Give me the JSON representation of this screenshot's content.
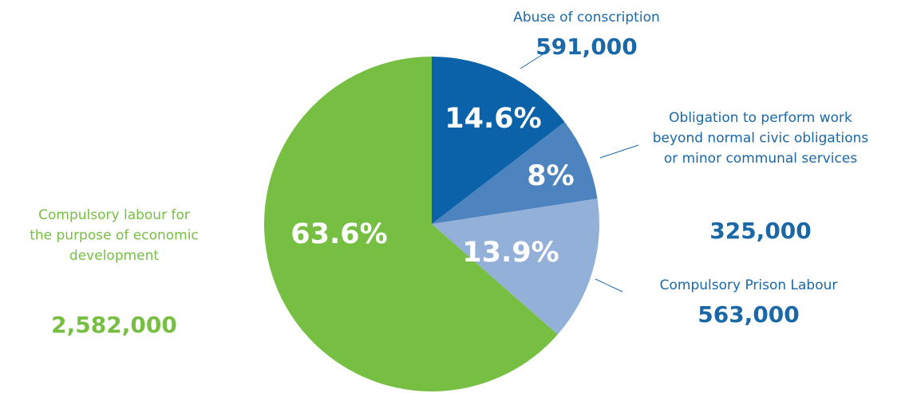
{
  "chart_data": {
    "type": "pie",
    "categories": [
      [
        "Abuse of conscription"
      ],
      [
        "Obligation to perform work",
        "beyond normal civic obligations",
        "or minor communal services"
      ],
      [
        "Compulsory Prison Labour"
      ],
      [
        "Compulsory labour for",
        "the purpose of economic",
        "development"
      ]
    ],
    "values": [
      14.6,
      8,
      13.9,
      63.6
    ],
    "value_labels": [
      "14.6%",
      "8%",
      "13.9%",
      "63.6%"
    ],
    "counts": [
      591000,
      325000,
      563000,
      2582000
    ],
    "count_labels": [
      "591,000",
      "325,000",
      "563,000",
      "2,582,000"
    ],
    "colors": [
      "#0b62a8",
      "#4d83bf",
      "#93b0d9",
      "#76bf43"
    ],
    "label_colors": [
      "#1b68a8",
      "#1b68a8",
      "#1b68a8",
      "#76bf43"
    ]
  }
}
